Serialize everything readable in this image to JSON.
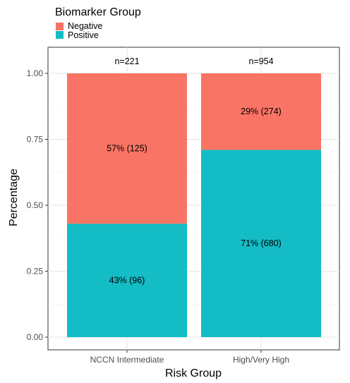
{
  "chart_data": {
    "type": "bar",
    "stacked": true,
    "xlabel": "Risk Group",
    "ylabel": "Percentage",
    "ylim": [
      0,
      1.0
    ],
    "yticks": [
      "0.00",
      "0.25",
      "0.50",
      "0.75",
      "1.00"
    ],
    "ytick_values": [
      0,
      0.25,
      0.5,
      0.75,
      1.0
    ],
    "categories": [
      "NCCN Intermediate",
      "High/Very High"
    ],
    "n_labels": [
      "n=221",
      "n=954"
    ],
    "legend": {
      "title": "Biomarker Group",
      "position": "top-left",
      "entries": [
        "Negative",
        "Positive"
      ]
    },
    "series": [
      {
        "name": "Positive",
        "color": "#14bcc6",
        "values": [
          0.43,
          0.71
        ],
        "labels": [
          "43% (96)",
          "71% (680)"
        ]
      },
      {
        "name": "Negative",
        "color": "#fa7465",
        "values": [
          0.57,
          0.29
        ],
        "labels": [
          "57% (125)",
          "29% (274)"
        ]
      }
    ],
    "grid": true
  }
}
